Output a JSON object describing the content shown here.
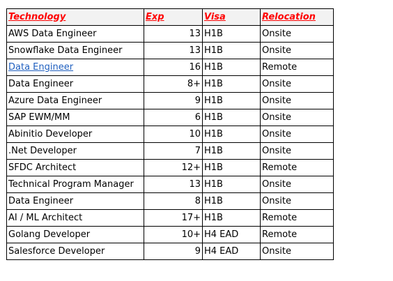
{
  "table": {
    "headers": {
      "technology": "Technology",
      "exp": "Exp",
      "visa": "Visa",
      "relocation": "Relocation"
    },
    "rows": [
      {
        "technology": "AWS Data Engineer",
        "exp": "13",
        "visa": "H1B",
        "relocation": "Onsite"
      },
      {
        "technology": "Snowflake Data Engineer",
        "exp": "13",
        "visa": "H1B",
        "relocation": "Onsite"
      },
      {
        "technology": "Data Engineer",
        "exp": "16",
        "visa": "H1B",
        "relocation": "Remote"
      },
      {
        "technology": "Data Engineer",
        "exp": "8+",
        "visa": "H1B",
        "relocation": "Onsite"
      },
      {
        "technology": "Azure Data Engineer",
        "exp": "9",
        "visa": "H1B",
        "relocation": "Onsite"
      },
      {
        "technology": "SAP EWM/MM",
        "exp": "6",
        "visa": "H1B",
        "relocation": "Onsite"
      },
      {
        "technology": "Abinitio Developer",
        "exp": "10",
        "visa": "H1B",
        "relocation": "Onsite"
      },
      {
        "technology": ".Net Developer",
        "exp": "7",
        "visa": "H1B",
        "relocation": "Onsite"
      },
      {
        "technology": "SFDC Architect",
        "exp": "12+",
        "visa": "H1B",
        "relocation": "Remote"
      },
      {
        "technology": "Technical Program Manager",
        "exp": "13",
        "visa": "H1B",
        "relocation": "Onsite"
      },
      {
        "technology": "Data Engineer",
        "exp": "8",
        "visa": "H1B",
        "relocation": "Onsite"
      },
      {
        "technology": "AI / ML Architect",
        "exp": "17+",
        "visa": "H1B",
        "relocation": "Remote"
      },
      {
        "technology": "Golang Developer",
        "exp": "10+",
        "visa": "H4 EAD",
        "relocation": "Remote"
      },
      {
        "technology": "Salesforce Developer",
        "exp": "9",
        "visa": "H4 EAD",
        "relocation": "Onsite"
      }
    ]
  },
  "colors": {
    "header_text": "#ff0000",
    "link_text": "#1f5fbf",
    "border": "#000000"
  }
}
